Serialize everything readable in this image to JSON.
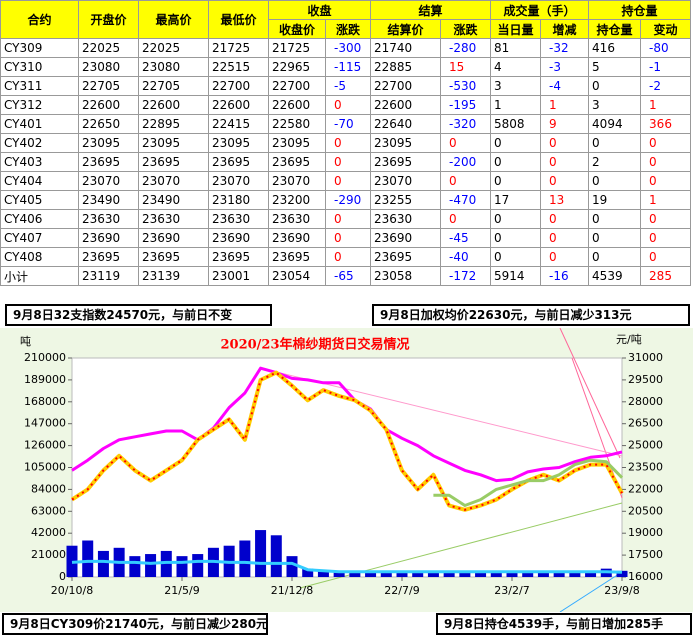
{
  "table": {
    "headers": [
      "合约",
      "开盘价",
      "最高价",
      "最低价",
      "收盘价",
      "涨跌",
      "结算价",
      "涨跌",
      "当日量",
      "增减",
      "持仓量",
      "变动"
    ],
    "group_headers": [
      "收盘",
      "结算",
      "成交量（手）",
      "持仓量"
    ],
    "rows": [
      [
        "CY309",
        22025,
        22025,
        21725,
        21725,
        -300,
        21740,
        -280,
        81,
        -32,
        416,
        -80
      ],
      [
        "CY310",
        23080,
        23080,
        22515,
        22965,
        -115,
        22885,
        15,
        4,
        -3,
        5,
        -1
      ],
      [
        "CY311",
        22705,
        22705,
        22700,
        22700,
        -5,
        22700,
        -530,
        3,
        -4,
        0,
        -2
      ],
      [
        "CY312",
        22600,
        22600,
        22600,
        22600,
        0,
        22600,
        -195,
        1,
        1,
        3,
        1
      ],
      [
        "CY401",
        22650,
        22895,
        22415,
        22580,
        -70,
        22640,
        -320,
        5808,
        9,
        4094,
        366
      ],
      [
        "CY402",
        23095,
        23095,
        23095,
        23095,
        0,
        23095,
        0,
        0,
        0,
        0,
        0
      ],
      [
        "CY403",
        23695,
        23695,
        23695,
        23695,
        0,
        23695,
        -200,
        0,
        0,
        2,
        0
      ],
      [
        "CY404",
        23070,
        23070,
        23070,
        23070,
        0,
        23070,
        0,
        0,
        0,
        0,
        0
      ],
      [
        "CY405",
        23490,
        23490,
        23180,
        23200,
        -290,
        23255,
        -470,
        17,
        13,
        19,
        1
      ],
      [
        "CY406",
        23630,
        23630,
        23630,
        23630,
        0,
        23630,
        0,
        0,
        0,
        0,
        0
      ],
      [
        "CY407",
        23690,
        23690,
        23690,
        23690,
        0,
        23690,
        -45,
        0,
        0,
        0,
        0
      ],
      [
        "CY408",
        23695,
        23695,
        23695,
        23695,
        0,
        23695,
        -40,
        0,
        0,
        0,
        0
      ],
      [
        "小计",
        23119,
        23139,
        23001,
        23054,
        -65,
        23058,
        -172,
        5914,
        -16,
        4539,
        285
      ]
    ]
  },
  "notes": [
    "9月8日32支指数24570元，与前日不变",
    "9月8日加权均价22630元，与前日减少313元",
    "9月8日CY309价21740元，与前日减少280元",
    "9月8日持仓4539手，与前日增加285手"
  ],
  "chart_data": {
    "type": "combo",
    "title": "2020/23年棉纱期货日交易情况",
    "y_label": "吨",
    "y2_label": "元/吨",
    "categories": [
      "20/10/8",
      null,
      null,
      null,
      null,
      null,
      null,
      "21/5/9",
      null,
      null,
      null,
      null,
      null,
      null,
      "21/12/8",
      null,
      null,
      null,
      null,
      null,
      null,
      "22/7/9",
      null,
      null,
      null,
      null,
      null,
      null,
      "23/2/7",
      null,
      null,
      null,
      null,
      null,
      null,
      "23/9/8"
    ],
    "ylim": [
      0,
      210000
    ],
    "yticks": [
      0,
      21000,
      42000,
      63000,
      84000,
      105000,
      126000,
      147000,
      168000,
      189000,
      210000
    ],
    "y2lim": [
      16000,
      31000
    ],
    "y2ticks": [
      16000,
      17500,
      19000,
      20500,
      22000,
      23500,
      25000,
      26500,
      28000,
      29500,
      31000
    ],
    "series": [
      {
        "type": "bar",
        "color": "#0000cc",
        "values": [
          30000,
          35000,
          25000,
          28000,
          20000,
          22000,
          25000,
          20000,
          22000,
          28000,
          30000,
          35000,
          45000,
          40000,
          20000,
          8000,
          6000,
          5000,
          6000,
          5000,
          5000,
          6000,
          5000,
          4000,
          4000,
          4000,
          5000,
          5000,
          5000,
          6000,
          6000,
          5000,
          5000,
          6000,
          8000,
          5914
        ]
      },
      {
        "type": "line",
        "color": "#33ccff",
        "values": [
          14000,
          15000,
          15000,
          14000,
          14000,
          13000,
          14000,
          14000,
          15000,
          15000,
          14000,
          14000,
          13000,
          13000,
          13000,
          7000,
          6000,
          5000,
          5000,
          5000,
          5000,
          5000,
          5000,
          5000,
          5000,
          5000,
          5000,
          5000,
          5000,
          5000,
          5000,
          5000,
          5000,
          5000,
          5000,
          4539
        ]
      },
      {
        "type": "line",
        "axis": "y2",
        "color": "#ff00ff",
        "values": [
          23300,
          24000,
          24800,
          25400,
          25600,
          25800,
          26000,
          26000,
          25400,
          26200,
          27600,
          28600,
          30300,
          30000,
          29600,
          29500,
          29300,
          29300,
          28100,
          27500,
          26100,
          25500,
          25000,
          24300,
          23800,
          23300,
          23000,
          22600,
          22700,
          23200,
          23400,
          23500,
          23900,
          24200,
          24300,
          24570
        ]
      },
      {
        "type": "line",
        "axis": "y2",
        "color": "#ffcc00",
        "dash_color": "#ff0000",
        "values": [
          21300,
          22000,
          23300,
          24300,
          23300,
          22600,
          23300,
          24000,
          25400,
          26100,
          26800,
          25400,
          29500,
          30000,
          29100,
          28100,
          28800,
          28400,
          28100,
          27400,
          26100,
          23300,
          22000,
          23000,
          20900,
          20600,
          20900,
          21300,
          22000,
          22600,
          23000,
          22600,
          23300,
          23700,
          23700,
          21740
        ]
      },
      {
        "type": "line",
        "axis": "y2",
        "color": "#99cc66",
        "values": [
          null,
          null,
          null,
          null,
          null,
          null,
          null,
          null,
          null,
          null,
          null,
          null,
          null,
          null,
          null,
          null,
          null,
          null,
          null,
          null,
          null,
          null,
          null,
          21600,
          21600,
          20900,
          21300,
          22000,
          22300,
          22600,
          22600,
          23000,
          23700,
          24000,
          23900,
          22800
        ]
      }
    ]
  }
}
